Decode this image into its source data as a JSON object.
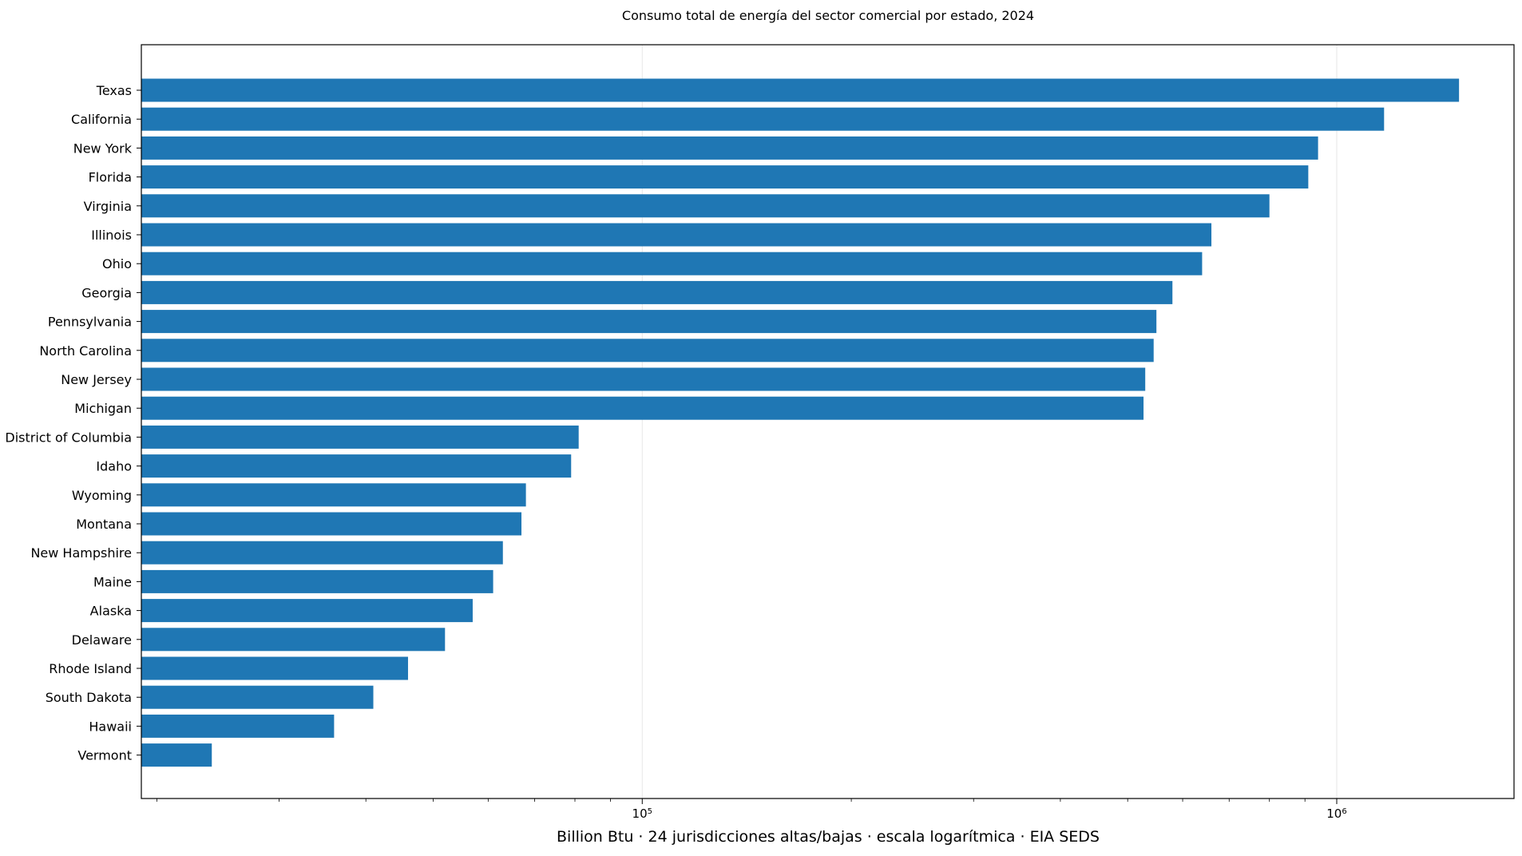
{
  "chart_data": {
    "type": "bar",
    "orientation": "horizontal",
    "title": "Consumo total de energía del sector comercial por estado, 2024",
    "xlabel": "Billion Btu · 24 jurisdicciones altas/bajas · escala logarítmica · EIA SEDS",
    "ylabel": "",
    "x_scale": "log",
    "xlim": [
      19000,
      1800000
    ],
    "x_ticks": [
      {
        "value": 100000,
        "base": "10",
        "exp": "5"
      },
      {
        "value": 1000000,
        "base": "10",
        "exp": "6"
      }
    ],
    "grid": "vertical major lines",
    "bar_color": "#1f77b4",
    "categories": [
      "Texas",
      "California",
      "New York",
      "Florida",
      "Virginia",
      "Illinois",
      "Ohio",
      "Georgia",
      "Pennsylvania",
      "North Carolina",
      "New Jersey",
      "Michigan",
      "District of Columbia",
      "Idaho",
      "Wyoming",
      "Montana",
      "New Hampshire",
      "Maine",
      "Alaska",
      "Delaware",
      "Rhode Island",
      "South Dakota",
      "Hawaii",
      "Vermont"
    ],
    "values": [
      1500000,
      1170000,
      940000,
      910000,
      800000,
      660000,
      640000,
      580000,
      550000,
      545000,
      530000,
      527000,
      81000,
      79000,
      68000,
      67000,
      63000,
      61000,
      57000,
      52000,
      46000,
      41000,
      36000,
      24000
    ]
  }
}
